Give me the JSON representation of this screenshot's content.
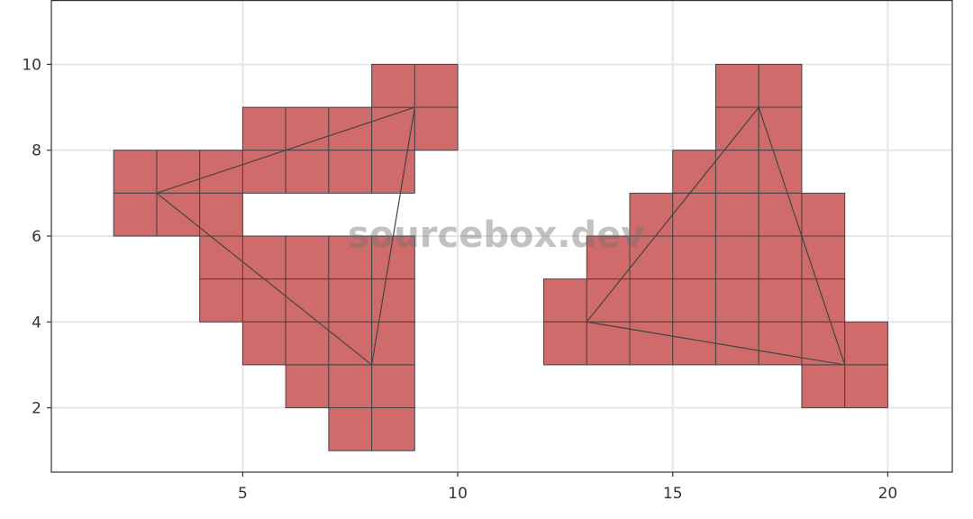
{
  "watermark": "sourcebox.dev",
  "chart_data": {
    "type": "raster-triangles",
    "xlim": [
      0.55,
      21.5
    ],
    "ylim": [
      0.5,
      11.5
    ],
    "x_ticks": [
      5,
      10,
      15,
      20
    ],
    "y_ticks": [
      2,
      4,
      6,
      8,
      10
    ],
    "grid": true,
    "cell_fill": "#d06b6b",
    "cell_stroke": "#444444",
    "line_color": "#444444",
    "grid_color": "#e6e6e6",
    "triangles": [
      {
        "vertices": [
          [
            3,
            7
          ],
          [
            9,
            9
          ],
          [
            8,
            3
          ]
        ]
      },
      {
        "vertices": [
          [
            13,
            4
          ],
          [
            17,
            9
          ],
          [
            19,
            3
          ]
        ]
      }
    ],
    "cells": [
      [
        2,
        7
      ],
      [
        3,
        7
      ],
      [
        4,
        7
      ],
      [
        2,
        6
      ],
      [
        3,
        6
      ],
      [
        4,
        6
      ],
      [
        5,
        8
      ],
      [
        6,
        8
      ],
      [
        7,
        8
      ],
      [
        8,
        8
      ],
      [
        5,
        7
      ],
      [
        6,
        7
      ],
      [
        7,
        7
      ],
      [
        8,
        7
      ],
      [
        4,
        5
      ],
      [
        5,
        5
      ],
      [
        6,
        5
      ],
      [
        7,
        5
      ],
      [
        8,
        5
      ],
      [
        4,
        4
      ],
      [
        5,
        4
      ],
      [
        6,
        4
      ],
      [
        7,
        4
      ],
      [
        8,
        4
      ],
      [
        5,
        3
      ],
      [
        6,
        3
      ],
      [
        7,
        3
      ],
      [
        8,
        3
      ],
      [
        6,
        2
      ],
      [
        7,
        2
      ],
      [
        8,
        2
      ],
      [
        7,
        1
      ],
      [
        8,
        1
      ],
      [
        8,
        9
      ],
      [
        9,
        9
      ],
      [
        9,
        8
      ],
      [
        16,
        9
      ],
      [
        17,
        9
      ],
      [
        16,
        8
      ],
      [
        17,
        8
      ],
      [
        15,
        7
      ],
      [
        16,
        7
      ],
      [
        17,
        7
      ],
      [
        14,
        6
      ],
      [
        15,
        6
      ],
      [
        16,
        6
      ],
      [
        17,
        6
      ],
      [
        18,
        6
      ],
      [
        13,
        5
      ],
      [
        14,
        5
      ],
      [
        15,
        5
      ],
      [
        16,
        5
      ],
      [
        17,
        5
      ],
      [
        18,
        5
      ],
      [
        12,
        4
      ],
      [
        13,
        4
      ],
      [
        14,
        4
      ],
      [
        15,
        4
      ],
      [
        16,
        4
      ],
      [
        17,
        4
      ],
      [
        18,
        4
      ],
      [
        12,
        3
      ],
      [
        13,
        3
      ],
      [
        14,
        3
      ],
      [
        15,
        3
      ],
      [
        16,
        3
      ],
      [
        17,
        3
      ],
      [
        18,
        3
      ],
      [
        19,
        3
      ],
      [
        18,
        2
      ],
      [
        19,
        2
      ]
    ]
  }
}
